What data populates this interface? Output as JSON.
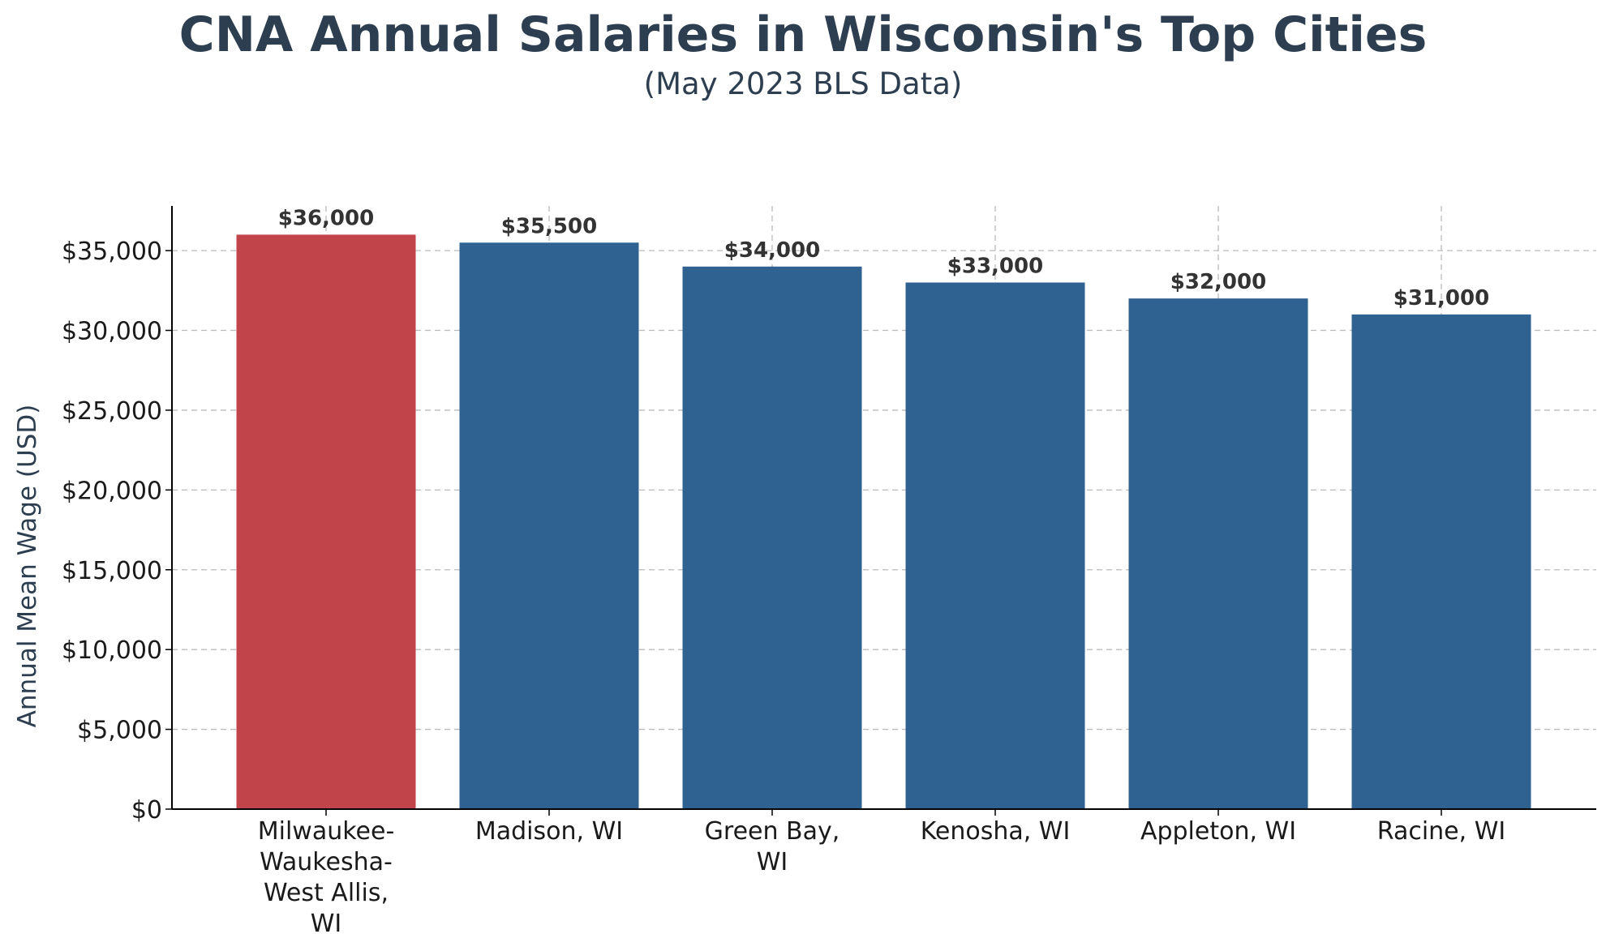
{
  "chart_data": {
    "type": "bar",
    "title": "CNA Annual Salaries in Wisconsin's Top Cities",
    "subtitle": "(May 2023 BLS Data)",
    "xlabel": "",
    "ylabel": "Annual Mean Wage (USD)",
    "categories": [
      [
        "Milwaukee-",
        "Waukesha-",
        "West Allis,",
        "WI"
      ],
      [
        "Madison, WI"
      ],
      [
        "Green Bay,",
        "WI"
      ],
      [
        "Kenosha, WI"
      ],
      [
        "Appleton, WI"
      ],
      [
        "Racine, WI"
      ]
    ],
    "values": [
      36000,
      35500,
      34000,
      33000,
      32000,
      31000
    ],
    "data_labels": [
      "$36,000",
      "$35,500",
      "$34,000",
      "$33,000",
      "$32,000",
      "$31,000"
    ],
    "bar_colors": [
      "#c0444a",
      "#2f6291",
      "#2f6291",
      "#2f6291",
      "#2f6291",
      "#2f6291"
    ],
    "yticks": [
      0,
      5000,
      10000,
      15000,
      20000,
      25000,
      30000,
      35000
    ],
    "ytick_labels": [
      "$0",
      "$5,000",
      "$10,000",
      "$15,000",
      "$20,000",
      "$25,000",
      "$30,000",
      "$35,000"
    ],
    "ylim": [
      0,
      37800
    ],
    "grid": true,
    "grid_color": "#bbbbbb",
    "axis_color": "#000000",
    "title_color": "#2c3e50"
  }
}
